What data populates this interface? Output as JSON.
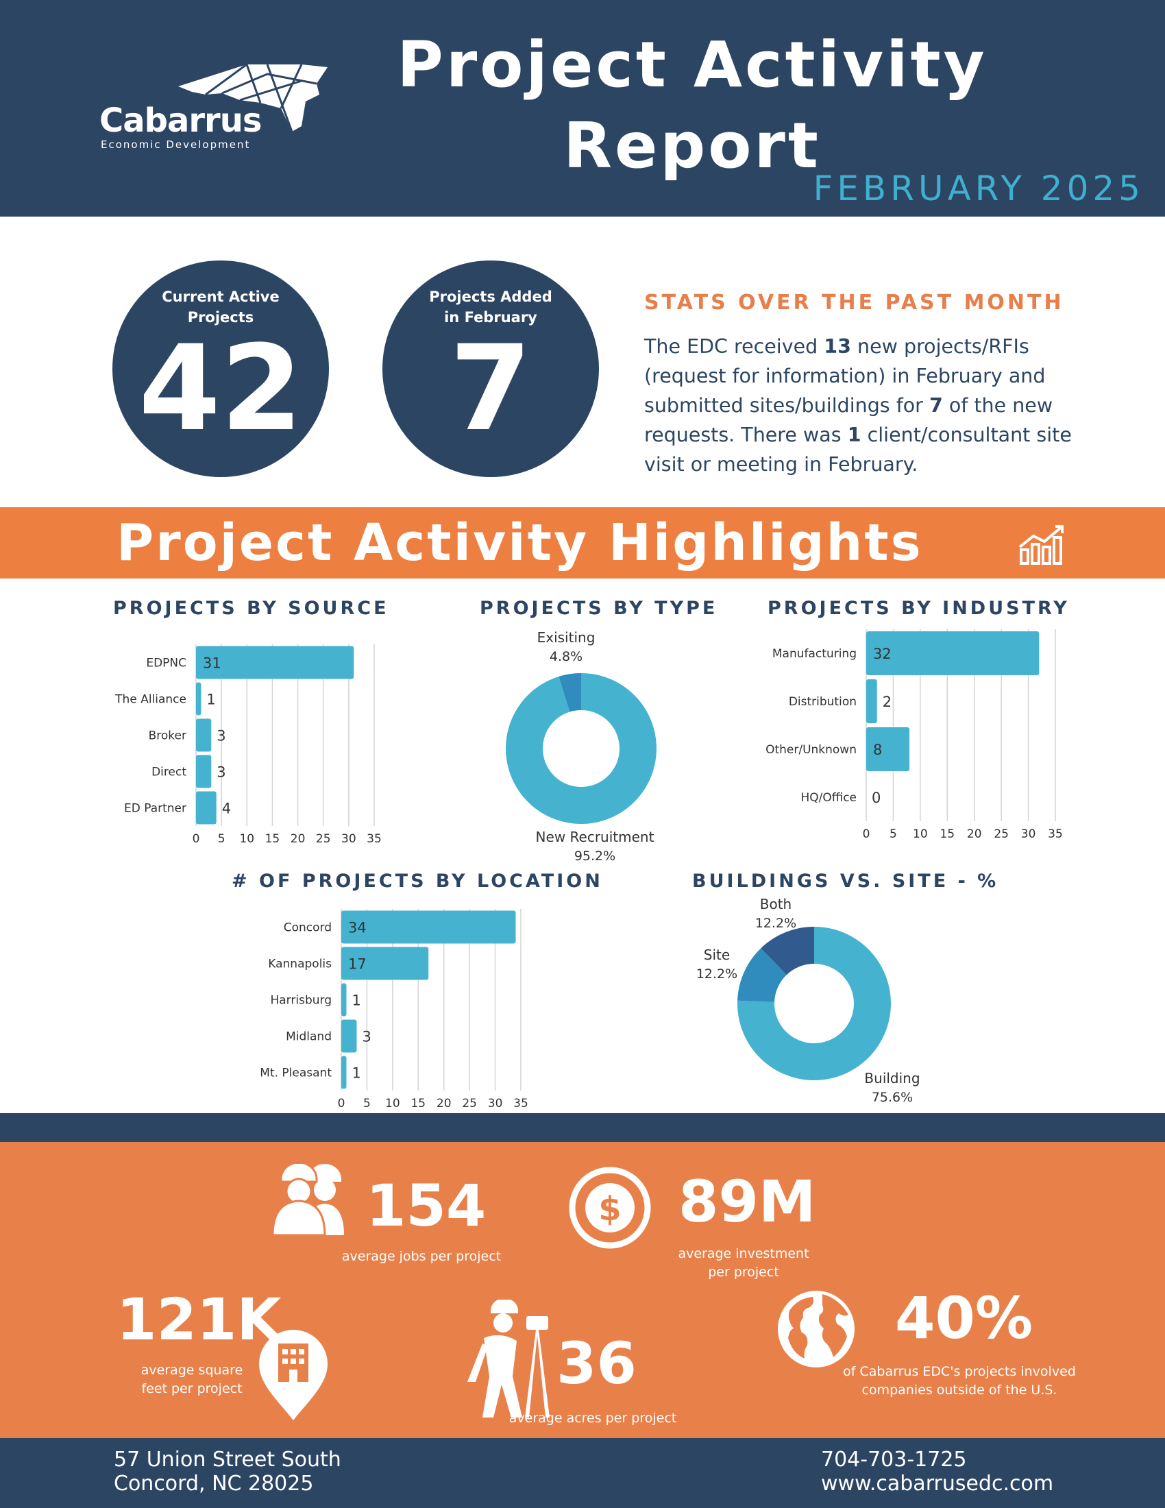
{
  "header": {
    "logo_name": "Cabarrus",
    "logo_sub": "Economic Development",
    "title_line1": "Project Activity",
    "title_line2": "Report",
    "subtitle": "FEBRUARY 2025"
  },
  "kpis": [
    {
      "label_line1": "Current Active",
      "label_line2": "Projects",
      "value": "42"
    },
    {
      "label_line1": "Projects Added",
      "label_line2": "in February",
      "value": "7"
    }
  ],
  "stats": {
    "heading": "STATS OVER THE PAST MONTH",
    "parts": [
      {
        "t": "The EDC received ",
        "b": false
      },
      {
        "t": "13",
        "b": true
      },
      {
        "t": " new projects/RFIs (request for information) in February and submitted sites/buildings for ",
        "b": false
      },
      {
        "t": "7",
        "b": true
      },
      {
        "t": " of the new requests. There was ",
        "b": false
      },
      {
        "t": "1",
        "b": true
      },
      {
        "t": " client/consultant site visit or meeting in February.",
        "b": false
      }
    ]
  },
  "highlights": {
    "title": "Project Activity Highlights"
  },
  "colors": {
    "navy": "#2c4563",
    "orange": "#ed7f40",
    "bar": "#45b3d0",
    "donut_main": "#45b3d0",
    "donut_mid": "#2f8cbc",
    "donut_dark": "#315a8e",
    "bottom": "#e8804a"
  },
  "chart_data": [
    {
      "type": "bar",
      "orientation": "horizontal",
      "title": "PROJECTS BY SOURCE",
      "categories": [
        "EDPNC",
        "The Alliance",
        "Broker",
        "Direct",
        "ED Partner"
      ],
      "values": [
        31,
        1,
        3,
        3,
        4
      ],
      "xlim": [
        0,
        35
      ],
      "xticks": [
        0,
        5,
        10,
        15,
        20,
        25,
        30,
        35
      ],
      "grid": true
    },
    {
      "type": "pie",
      "donut": true,
      "title": "PROJECTS BY TYPE",
      "labels": [
        "New Recruitment",
        "Exisiting"
      ],
      "values": [
        95.2,
        4.8
      ],
      "value_labels": [
        "95.2%",
        "4.8%"
      ]
    },
    {
      "type": "bar",
      "orientation": "horizontal",
      "title": "PROJECTS BY INDUSTRY",
      "categories": [
        "Manufacturing",
        "Distribution",
        "Other/Unknown",
        "HQ/Office"
      ],
      "values": [
        32,
        2,
        8,
        0
      ],
      "xlim": [
        0,
        35
      ],
      "xticks": [
        0,
        5,
        10,
        15,
        20,
        25,
        30,
        35
      ],
      "grid": true
    },
    {
      "type": "bar",
      "orientation": "horizontal",
      "title": "# OF PROJECTS BY LOCATION",
      "categories": [
        "Concord",
        "Kannapolis",
        "Harrisburg",
        "Midland",
        "Mt. Pleasant"
      ],
      "values": [
        34,
        17,
        1,
        3,
        1
      ],
      "xlim": [
        0,
        35
      ],
      "xticks": [
        0,
        5,
        10,
        15,
        20,
        25,
        30,
        35
      ],
      "grid": true
    },
    {
      "type": "pie",
      "donut": true,
      "title": "BUILDINGS VS. SITE - %",
      "labels": [
        "Building",
        "Site",
        "Both"
      ],
      "values": [
        75.6,
        12.2,
        12.2
      ],
      "value_labels": [
        "75.6%",
        "12.2%",
        "12.2%"
      ]
    }
  ],
  "bottom_stats": {
    "jobs": {
      "value": "154",
      "label": "average jobs per project"
    },
    "investment": {
      "value": "89M",
      "label_line1": "average investment",
      "label_line2": "per project"
    },
    "sqft": {
      "value": "121K",
      "label_line1": "average square",
      "label_line2": "feet per project"
    },
    "acres": {
      "value": "36",
      "label": "average acres per project"
    },
    "foreign": {
      "value": "40%",
      "label_line1": "of Cabarrus EDC's projects involved",
      "label_line2": "companies outside of the U.S."
    }
  },
  "footer": {
    "address_line1": "57 Union Street South",
    "address_line2": "Concord, NC 28025",
    "phone": "704-703-1725",
    "website": "www.cabarrusedc.com"
  }
}
